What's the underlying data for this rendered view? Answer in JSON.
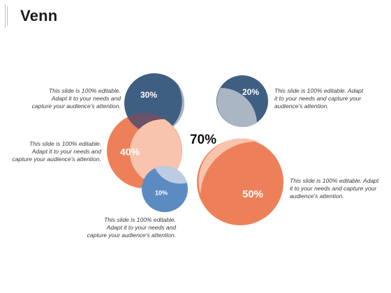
{
  "title": "Venn",
  "center_value": "70%",
  "circles": [
    {
      "label": "30%",
      "color": "#3f5f82",
      "overlap_color": "#aab6c3"
    },
    {
      "label": "20%",
      "color": "#3f5f82",
      "overlap_color": "#aab6c3"
    },
    {
      "label": "40%",
      "color": "#ee8059",
      "overlap_color": "#f8c4ad"
    },
    {
      "label": "10%",
      "color": "#5b8bc1",
      "overlap_color": "#bccde2"
    },
    {
      "label": "50%",
      "color": "#ee8059",
      "overlap_color": "#f8c4ad"
    }
  ],
  "captions": [
    {
      "lines": [
        "This slide is 100% editable.",
        "Adapt it to your needs and",
        "capture your audience's attention."
      ]
    },
    {
      "lines": [
        "This slide is 100% editable.  Adapt",
        "it to your needs and capture your",
        "audience's attention."
      ]
    },
    {
      "lines": [
        "This slide is 100% editable.",
        "Adapt it to your needs and",
        "capture your audience's attention."
      ]
    },
    {
      "lines": [
        "This slide is 100% editable.  Adapt",
        "it to your needs and capture your",
        "audience's attention."
      ]
    },
    {
      "lines": [
        "This slide is 100% editable.",
        "Adapt it to your needs and",
        "capture your audience's attention."
      ]
    }
  ]
}
